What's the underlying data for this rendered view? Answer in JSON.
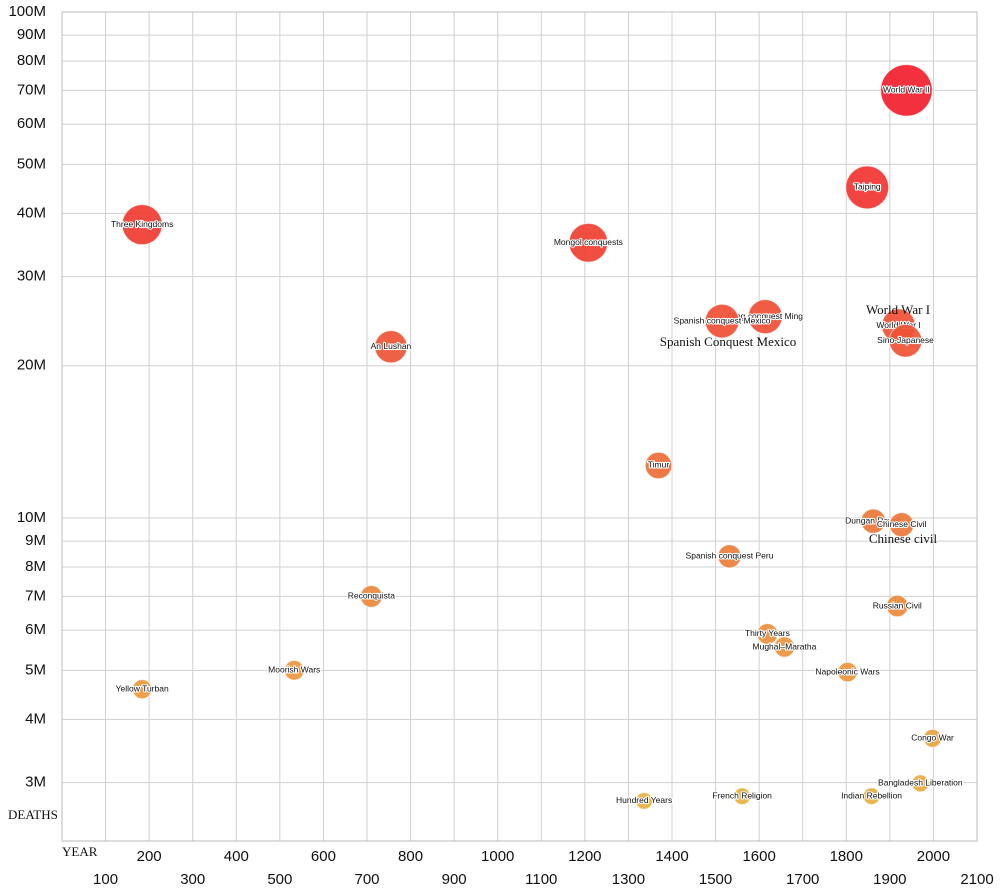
{
  "chart_data": {
    "type": "bubble",
    "x_label": "YEAR",
    "y_label": "DEATHS",
    "xlim": [
      0,
      2100
    ],
    "ylim": [
      2300000,
      100000000
    ],
    "log_y": true,
    "grid": true,
    "color_scale": [
      "#e8b040",
      "#f2202e"
    ],
    "xticks": [
      100,
      200,
      300,
      400,
      500,
      600,
      700,
      800,
      900,
      1000,
      1100,
      1200,
      1300,
      1400,
      1500,
      1600,
      1700,
      1800,
      1900,
      2000,
      2100
    ],
    "yticks": [
      {
        "value": 3000000,
        "label": "3M"
      },
      {
        "value": 4000000,
        "label": "4M"
      },
      {
        "value": 5000000,
        "label": "5M"
      },
      {
        "value": 6000000,
        "label": "6M"
      },
      {
        "value": 7000000,
        "label": "7M"
      },
      {
        "value": 8000000,
        "label": "8M"
      },
      {
        "value": 9000000,
        "label": "9M"
      },
      {
        "value": 10000000,
        "label": "10M"
      },
      {
        "value": 20000000,
        "label": "20M"
      },
      {
        "value": 30000000,
        "label": "30M"
      },
      {
        "value": 40000000,
        "label": "40M"
      },
      {
        "value": 50000000,
        "label": "50M"
      },
      {
        "value": 60000000,
        "label": "60M"
      },
      {
        "value": 70000000,
        "label": "70M"
      },
      {
        "value": 80000000,
        "label": "80M"
      },
      {
        "value": 90000000,
        "label": "90M"
      },
      {
        "value": 100000000,
        "label": "100M"
      }
    ],
    "labels": [
      "World War II",
      "Taiping",
      "Three Kingdoms",
      "Mongol conquests",
      "Qing conquest Ming",
      "Spanish conquest Mexico",
      "World War I",
      "Sino-Japanese",
      "An Lushan",
      "Timur",
      "Dungan Revolt",
      "Chinese Civil",
      "Spanish conquest Peru",
      "Reconquista",
      "Russian Civil",
      "Thirty Years",
      "Mughal–Maratha",
      "Moorish Wars",
      "Napoleonic Wars",
      "Yellow Turban",
      "Congo War",
      "Bangladesh Liberation",
      "French Religion",
      "Indian Rebellion",
      "Hundred Years"
    ],
    "x": [
      1938,
      1848,
      184,
      1208,
      1614,
      1515,
      1920,
      1936,
      755,
      1369,
      1862,
      1927,
      1532,
      710,
      1917,
      1619,
      1658,
      533,
      1803,
      184,
      1998,
      1970,
      1561,
      1858,
      1336
    ],
    "values": [
      70000000,
      45000000,
      38000000,
      35000000,
      25000000,
      24500000,
      24000000,
      22400000,
      21800000,
      12700000,
      9860000,
      9700000,
      8400000,
      7000000,
      6700000,
      5900000,
      5560000,
      5000000,
      4960000,
      4590000,
      3670000,
      2990000,
      2820000,
      2820000,
      2760000
    ],
    "annotations": [
      "World War I",
      "Spanish Conquest Mexico",
      "Chinese civil"
    ]
  }
}
